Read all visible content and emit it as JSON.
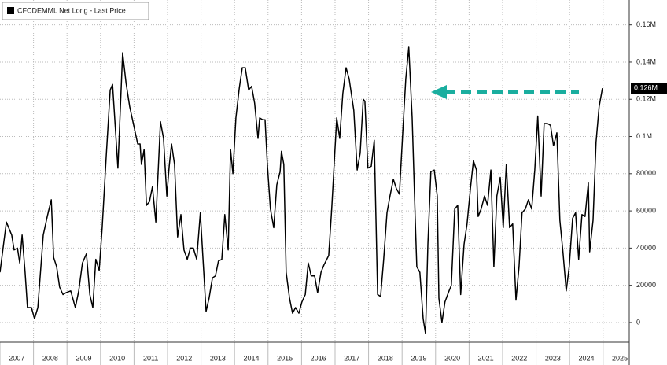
{
  "chart_data": {
    "type": "line",
    "series": [
      {
        "name": "CFCDEMML Net Long - Last Price",
        "color": "#000000",
        "x": [
          2007.0,
          2007.19,
          2007.35,
          2007.42,
          2007.52,
          2007.59,
          2007.66,
          2007.75,
          2007.82,
          2007.94,
          2008.03,
          2008.13,
          2008.29,
          2008.41,
          2008.53,
          2008.6,
          2008.69,
          2008.78,
          2008.88,
          2008.97,
          2009.11,
          2009.25,
          2009.35,
          2009.46,
          2009.58,
          2009.68,
          2009.77,
          2009.86,
          2009.96,
          2010.05,
          2010.17,
          2010.29,
          2010.36,
          2010.52,
          2010.66,
          2010.76,
          2010.87,
          2010.99,
          2011.11,
          2011.18,
          2011.22,
          2011.3,
          2011.37,
          2011.46,
          2011.55,
          2011.65,
          2011.79,
          2011.88,
          2011.98,
          2012.05,
          2012.12,
          2012.21,
          2012.3,
          2012.4,
          2012.49,
          2012.59,
          2012.68,
          2012.77,
          2012.87,
          2012.98,
          2013.06,
          2013.15,
          2013.24,
          2013.34,
          2013.43,
          2013.52,
          2013.62,
          2013.71,
          2013.81,
          2013.88,
          2013.95,
          2014.04,
          2014.14,
          2014.23,
          2014.32,
          2014.42,
          2014.51,
          2014.6,
          2014.7,
          2014.75,
          2014.84,
          2014.91,
          2014.98,
          2015.07,
          2015.17,
          2015.26,
          2015.36,
          2015.4,
          2015.47,
          2015.54,
          2015.64,
          2015.73,
          2015.82,
          2015.92,
          2016.01,
          2016.11,
          2016.2,
          2016.29,
          2016.39,
          2016.48,
          2016.58,
          2016.67,
          2016.81,
          2016.9,
          2017.05,
          2017.14,
          2017.23,
          2017.33,
          2017.42,
          2017.56,
          2017.66,
          2017.75,
          2017.84,
          2017.89,
          2017.98,
          2018.08,
          2018.17,
          2018.27,
          2018.36,
          2018.45,
          2018.55,
          2018.64,
          2018.74,
          2018.83,
          2018.92,
          2019.02,
          2019.11,
          2019.2,
          2019.3,
          2019.39,
          2019.44,
          2019.53,
          2019.63,
          2019.7,
          2019.77,
          2019.86,
          2019.96,
          2020.05,
          2020.1,
          2020.19,
          2020.28,
          2020.38,
          2020.47,
          2020.57,
          2020.66,
          2020.75,
          2020.85,
          2020.94,
          2021.04,
          2021.13,
          2021.22,
          2021.27,
          2021.36,
          2021.46,
          2021.55,
          2021.65,
          2021.74,
          2021.83,
          2021.93,
          2022.02,
          2022.11,
          2022.21,
          2022.3,
          2022.4,
          2022.49,
          2022.58,
          2022.68,
          2022.77,
          2022.87,
          2022.96,
          2023.05,
          2023.15,
          2023.24,
          2023.34,
          2023.43,
          2023.52,
          2023.62,
          2023.71,
          2023.8,
          2023.9,
          2023.99,
          2024.09,
          2024.18,
          2024.27,
          2024.37,
          2024.46,
          2024.56,
          2024.6,
          2024.7,
          2024.79,
          2024.88,
          2024.98
        ],
        "values": [
          27000,
          54000,
          47000,
          39000,
          40000,
          32000,
          47000,
          27000,
          8000,
          8000,
          2000,
          8000,
          47000,
          57000,
          66000,
          35000,
          30000,
          19000,
          15000,
          16000,
          17000,
          8000,
          17000,
          32000,
          37000,
          15000,
          8000,
          34000,
          28000,
          51000,
          89000,
          125000,
          128000,
          83000,
          145000,
          129000,
          116000,
          106000,
          96000,
          96000,
          85000,
          93000,
          63000,
          65000,
          73000,
          54000,
          108000,
          99000,
          68000,
          84000,
          96000,
          85000,
          46000,
          58000,
          39000,
          34000,
          40000,
          40000,
          34000,
          59000,
          34000,
          6000,
          13000,
          24000,
          25000,
          33000,
          34000,
          58000,
          39000,
          93000,
          80000,
          110000,
          126000,
          137000,
          137000,
          125000,
          127000,
          118000,
          99000,
          110000,
          109000,
          109000,
          85000,
          61000,
          51000,
          74000,
          81000,
          92000,
          85000,
          27000,
          13000,
          5000,
          8000,
          5000,
          11000,
          15000,
          32000,
          25000,
          25000,
          16000,
          27000,
          31000,
          36000,
          61000,
          110000,
          99000,
          123000,
          137000,
          131000,
          114000,
          82000,
          91000,
          120000,
          119000,
          83000,
          84000,
          98000,
          15000,
          14000,
          34000,
          59000,
          68000,
          77000,
          72000,
          69000,
          102000,
          131000,
          148000,
          110000,
          57000,
          30000,
          27000,
          2000,
          -6000,
          42000,
          81000,
          82000,
          68000,
          13000,
          0,
          11000,
          16000,
          20000,
          61000,
          63000,
          15000,
          42000,
          53000,
          72000,
          87000,
          82000,
          57000,
          61000,
          68000,
          63000,
          82000,
          30000,
          68000,
          78000,
          51000,
          85000,
          51000,
          53000,
          12000,
          30000,
          59000,
          61000,
          66000,
          61000,
          82000,
          111000,
          68000,
          107000,
          107000,
          106000,
          95000,
          102000,
          55000,
          38000,
          17000,
          30000,
          56000,
          59000,
          34000,
          58000,
          57000,
          75000,
          38000,
          55000,
          97000,
          116000,
          126000
        ]
      }
    ],
    "xlim": [
      2007,
      2025.78
    ],
    "xticks": [
      {
        "value": 2007,
        "label": "2007"
      },
      {
        "value": 2008,
        "label": "2008"
      },
      {
        "value": 2009,
        "label": "2009"
      },
      {
        "value": 2010,
        "label": "2010"
      },
      {
        "value": 2011,
        "label": "2011"
      },
      {
        "value": 2012,
        "label": "2012"
      },
      {
        "value": 2013,
        "label": "2013"
      },
      {
        "value": 2014,
        "label": "2014"
      },
      {
        "value": 2015,
        "label": "2015"
      },
      {
        "value": 2016,
        "label": "2016"
      },
      {
        "value": 2017,
        "label": "2017"
      },
      {
        "value": 2018,
        "label": "2018"
      },
      {
        "value": 2019,
        "label": "2019"
      },
      {
        "value": 2020,
        "label": "2020"
      },
      {
        "value": 2021,
        "label": "2021"
      },
      {
        "value": 2022,
        "label": "2022"
      },
      {
        "value": 2023,
        "label": "2023"
      },
      {
        "value": 2024,
        "label": "2024"
      },
      {
        "value": 2025,
        "label": "2025"
      }
    ],
    "ylim": [
      -10600,
      173400
    ],
    "yticks": [
      0,
      20000,
      40000,
      60000,
      80000,
      {
        "value": 100000,
        "label": "0.1M"
      },
      {
        "value": 120000,
        "label": "0.12M"
      },
      {
        "value": 140000,
        "label": "0.14M"
      },
      {
        "value": 160000,
        "label": "0.16M"
      }
    ],
    "grid": true,
    "legend": "top-left",
    "annotations": [
      {
        "label": "0.126M",
        "value": 126000
      }
    ]
  }
}
